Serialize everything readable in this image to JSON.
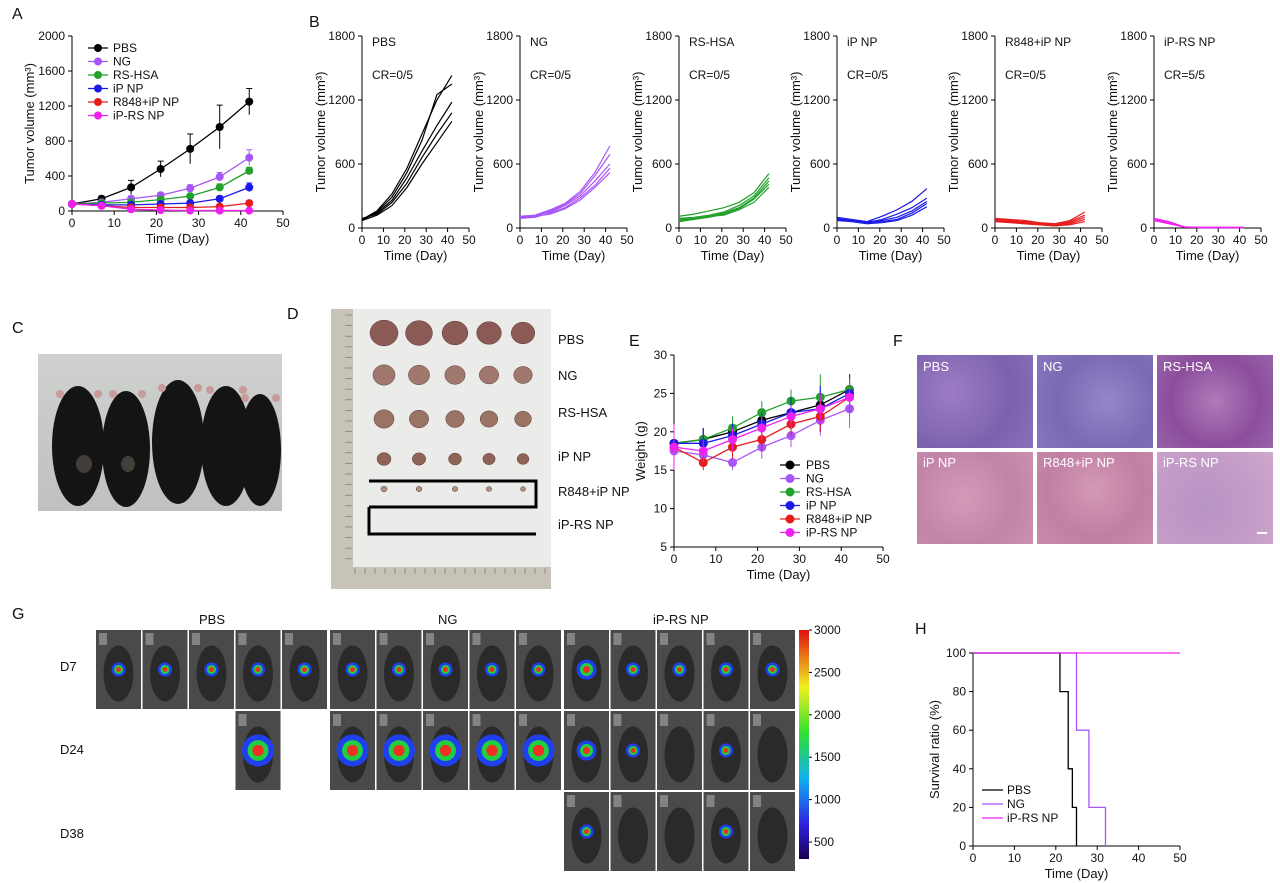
{
  "panels": {
    "A": "A",
    "B": "B",
    "C": "C",
    "D": "D",
    "E": "E",
    "F": "F",
    "G": "G",
    "H": "H"
  },
  "colors": {
    "PBS": "#000000",
    "NG": "#a855f7",
    "RS-HSA": "#22a02b",
    "iP NP": "#1a1ae6",
    "R848+iP NP": "#e61c1c",
    "iP-RS NP": "#ee22ee"
  },
  "chart_data": [
    {
      "id": "A",
      "type": "line",
      "xlabel": "Time (Day)",
      "ylabel": "Tumor volume (mm³)",
      "xlim": [
        0,
        50
      ],
      "ylim": [
        0,
        2000
      ],
      "xticks": [
        0,
        10,
        20,
        30,
        40,
        50
      ],
      "yticks": [
        0,
        400,
        800,
        1200,
        1600,
        2000
      ],
      "x": [
        0,
        7,
        14,
        21,
        28,
        35,
        42
      ],
      "series": [
        {
          "name": "PBS",
          "values": [
            80,
            140,
            270,
            480,
            710,
            960,
            1250
          ],
          "err": [
            20,
            30,
            80,
            90,
            170,
            250,
            150
          ]
        },
        {
          "name": "NG",
          "values": [
            80,
            100,
            140,
            180,
            260,
            390,
            610
          ],
          "err": [
            20,
            20,
            30,
            30,
            40,
            50,
            90
          ]
        },
        {
          "name": "RS-HSA",
          "values": [
            80,
            90,
            100,
            130,
            170,
            270,
            460
          ],
          "err": [
            15,
            15,
            20,
            20,
            25,
            40,
            40
          ]
        },
        {
          "name": "iP NP",
          "values": [
            80,
            70,
            70,
            80,
            90,
            140,
            270
          ],
          "err": [
            15,
            15,
            15,
            15,
            20,
            30,
            50
          ]
        },
        {
          "name": "R848+iP NP",
          "values": [
            80,
            60,
            40,
            40,
            40,
            50,
            90
          ],
          "err": [
            15,
            10,
            10,
            10,
            10,
            15,
            20
          ]
        },
        {
          "name": "iP-RS NP",
          "values": [
            80,
            60,
            20,
            10,
            5,
            5,
            5
          ],
          "err": [
            15,
            10,
            5,
            5,
            5,
            5,
            5
          ]
        }
      ]
    },
    {
      "id": "B",
      "type": "line",
      "xlabel": "Time (Day)",
      "ylabel": "Tumor volume (mm³)",
      "xlim": [
        0,
        50
      ],
      "ylim": [
        0,
        1800
      ],
      "xticks": [
        0,
        10,
        20,
        30,
        40,
        50
      ],
      "yticks": [
        0,
        600,
        1200,
        1800
      ],
      "ytick_labels": [
        "0",
        "600",
        "1200",
        "1800"
      ],
      "x": [
        0,
        7,
        14,
        21,
        28,
        35,
        42
      ],
      "groups": [
        {
          "name": "PBS",
          "cr": "CR=0/5",
          "lines": [
            [
              80,
              160,
              320,
              560,
              880,
              1200,
              1430
            ],
            [
              70,
              150,
              290,
              520,
              820,
              1250,
              1350
            ],
            [
              80,
              140,
              260,
              470,
              720,
              960,
              1180
            ],
            [
              90,
              130,
              240,
              420,
              660,
              880,
              1080
            ],
            [
              70,
              120,
              210,
              380,
              600,
              800,
              1000
            ]
          ]
        },
        {
          "name": "NG",
          "cr": "CR=0/5",
          "lines": [
            [
              100,
              120,
              170,
              230,
              340,
              520,
              770
            ],
            [
              90,
              110,
              160,
              220,
              320,
              490,
              690
            ],
            [
              110,
              120,
              150,
              210,
              300,
              440,
              600
            ],
            [
              90,
              100,
              140,
              190,
              280,
              400,
              560
            ],
            [
              100,
              110,
              130,
              180,
              260,
              380,
              520
            ]
          ]
        },
        {
          "name": "RS-HSA",
          "cr": "CR=0/5",
          "lines": [
            [
              110,
              130,
              160,
              190,
              240,
              330,
              510
            ],
            [
              90,
              100,
              120,
              150,
              210,
              300,
              470
            ],
            [
              70,
              90,
              110,
              140,
              190,
              280,
              440
            ],
            [
              60,
              80,
              100,
              130,
              180,
              270,
              410
            ],
            [
              80,
              90,
              110,
              120,
              170,
              240,
              380
            ]
          ]
        },
        {
          "name": "iP NP",
          "cr": "CR=0/5",
          "lines": [
            [
              100,
              80,
              60,
              110,
              170,
              250,
              370
            ],
            [
              90,
              70,
              50,
              80,
              130,
              190,
              280
            ],
            [
              80,
              60,
              60,
              70,
              100,
              160,
              250
            ],
            [
              80,
              70,
              50,
              60,
              80,
              140,
              230
            ],
            [
              70,
              60,
              40,
              50,
              70,
              120,
              200
            ]
          ]
        },
        {
          "name": "R848+iP NP",
          "cr": "CR=0/5",
          "lines": [
            [
              90,
              80,
              70,
              50,
              40,
              70,
              150
            ],
            [
              80,
              70,
              60,
              40,
              30,
              60,
              120
            ],
            [
              70,
              60,
              50,
              40,
              30,
              50,
              100
            ],
            [
              70,
              60,
              40,
              30,
              20,
              40,
              80
            ],
            [
              60,
              50,
              40,
              30,
              20,
              30,
              60
            ]
          ]
        },
        {
          "name": "iP-RS NP",
          "cr": "CR=5/5",
          "lines": [
            [
              90,
              60,
              10,
              5,
              5,
              5,
              5
            ],
            [
              80,
              50,
              10,
              5,
              5,
              5,
              5
            ],
            [
              70,
              40,
              10,
              5,
              5,
              5,
              5
            ],
            [
              80,
              50,
              8,
              5,
              5,
              5,
              5
            ],
            [
              90,
              55,
              12,
              5,
              5,
              5,
              5
            ]
          ]
        }
      ]
    },
    {
      "id": "E",
      "type": "line",
      "xlabel": "Time (Day)",
      "ylabel": "Weight (g)",
      "xlim": [
        0,
        50
      ],
      "ylim": [
        5,
        30
      ],
      "xticks": [
        0,
        10,
        20,
        30,
        40,
        50
      ],
      "yticks": [
        5,
        10,
        15,
        20,
        25,
        30
      ],
      "x": [
        0,
        7,
        14,
        21,
        28,
        35,
        42
      ],
      "series": [
        {
          "name": "PBS",
          "values": [
            18.5,
            19.0,
            20.0,
            21.5,
            22.5,
            23.5,
            25.5
          ],
          "err": [
            1.5,
            1.5,
            1.5,
            1.5,
            1.5,
            2.0,
            2.0
          ]
        },
        {
          "name": "NG",
          "values": [
            17.5,
            17.0,
            16.0,
            18.0,
            19.5,
            21.5,
            23.0
          ],
          "err": [
            1.5,
            1.5,
            1.0,
            1.5,
            1.5,
            2.0,
            2.5
          ]
        },
        {
          "name": "RS-HSA",
          "values": [
            18.5,
            19.0,
            20.5,
            22.5,
            24.0,
            24.5,
            25.5
          ],
          "err": [
            1.5,
            1.5,
            1.5,
            1.5,
            1.5,
            3.0,
            2.0
          ]
        },
        {
          "name": "iP NP",
          "values": [
            18.5,
            18.5,
            19.5,
            21.0,
            22.5,
            23.0,
            25.0
          ],
          "err": [
            1.5,
            2.0,
            1.5,
            1.5,
            2.0,
            3.0,
            2.5
          ]
        },
        {
          "name": "R848+iP NP",
          "values": [
            18.0,
            16.0,
            18.0,
            19.0,
            21.0,
            22.0,
            24.5
          ],
          "err": [
            1.5,
            1.0,
            1.5,
            1.5,
            1.5,
            2.0,
            2.0
          ]
        },
        {
          "name": "iP-RS NP",
          "values": [
            18.0,
            17.5,
            19.0,
            20.5,
            22.0,
            23.0,
            24.5
          ],
          "err": [
            3.0,
            1.5,
            1.5,
            1.5,
            1.5,
            2.0,
            2.5
          ]
        }
      ],
      "legend_order": [
        "PBS",
        "NG",
        "RS-HSA",
        "iP NP",
        "R848+iP NP",
        "iP-RS NP"
      ]
    },
    {
      "id": "H",
      "type": "line",
      "xlabel": "Time (Day)",
      "ylabel": "Survival ratio (%)",
      "xlim": [
        0,
        50
      ],
      "ylim": [
        0,
        100
      ],
      "xticks": [
        0,
        10,
        20,
        30,
        40,
        50
      ],
      "yticks": [
        0,
        20,
        40,
        60,
        80,
        100
      ],
      "series": [
        {
          "name": "PBS",
          "color": "#000000",
          "steps": [
            [
              0,
              100
            ],
            [
              21,
              100
            ],
            [
              21,
              80
            ],
            [
              23,
              80
            ],
            [
              23,
              40
            ],
            [
              24,
              40
            ],
            [
              24,
              20
            ],
            [
              25,
              20
            ],
            [
              25,
              0
            ]
          ]
        },
        {
          "name": "NG",
          "color": "#a855f7",
          "steps": [
            [
              0,
              100
            ],
            [
              25,
              100
            ],
            [
              25,
              60
            ],
            [
              28,
              60
            ],
            [
              28,
              20
            ],
            [
              32,
              20
            ],
            [
              32,
              0
            ]
          ]
        },
        {
          "name": "iP-RS NP",
          "color": "#ee22ee",
          "steps": [
            [
              0,
              100
            ],
            [
              50,
              100
            ]
          ]
        }
      ]
    },
    {
      "id": "G-colorbar",
      "type": "heatmap",
      "ticks": [
        500,
        1000,
        1500,
        2000,
        2500,
        3000
      ],
      "ylim": [
        300,
        3000
      ]
    }
  ],
  "panelD": {
    "labels": [
      "PBS",
      "NG",
      "RS-HSA",
      "iP NP",
      "R848+iP NP",
      "iP-RS NP"
    ]
  },
  "panelF": {
    "labels": [
      "PBS",
      "NG",
      "RS-HSA",
      "iP NP",
      "R848+iP NP",
      "iP-RS NP"
    ]
  },
  "panelG": {
    "groups": [
      "PBS",
      "NG",
      "iP-RS NP"
    ],
    "days": [
      "D7",
      "D24",
      "D38"
    ]
  }
}
